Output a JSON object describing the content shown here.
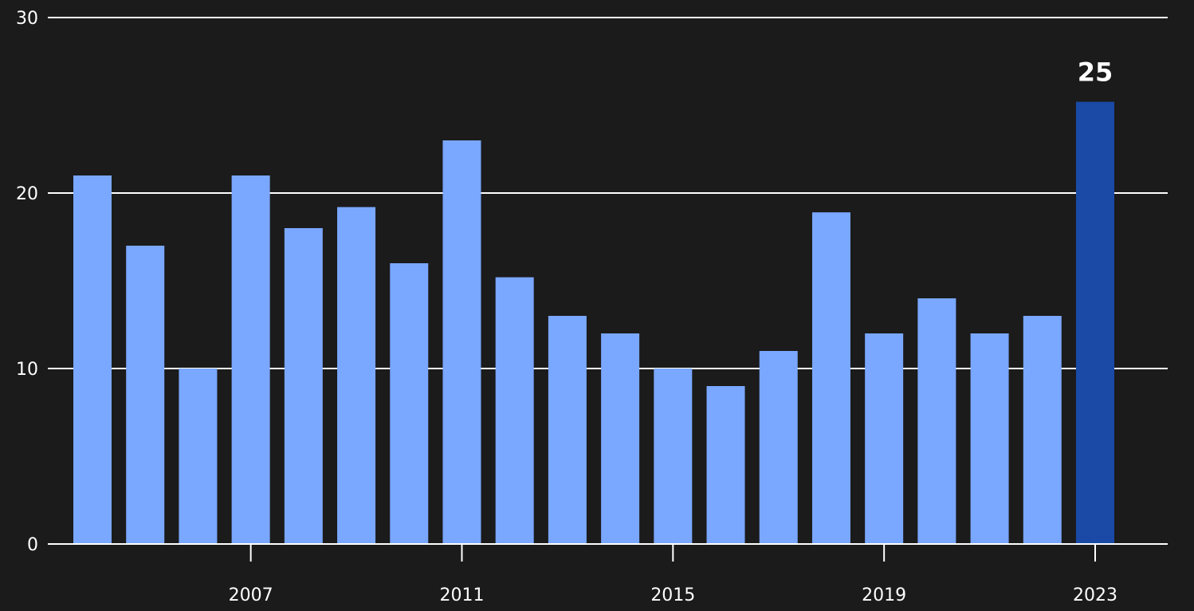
{
  "chart_data": {
    "type": "bar",
    "title": "",
    "xlabel": "",
    "ylabel": "",
    "categories": [
      "2004",
      "2005",
      "2006",
      "2007",
      "2008",
      "2009",
      "2010",
      "2011",
      "2012",
      "2013",
      "2014",
      "2015",
      "2016",
      "2017",
      "2018",
      "2019",
      "2020",
      "2021",
      "2022",
      "2023"
    ],
    "values": [
      21,
      17,
      10,
      21,
      18,
      19.2,
      16,
      23,
      15.2,
      13,
      12,
      10,
      9,
      11,
      18.9,
      12,
      14,
      12,
      13,
      25.2
    ],
    "ylim": [
      0,
      30
    ],
    "y_ticks": [
      {
        "value": 0,
        "label": "0"
      },
      {
        "value": 10,
        "label": "10"
      },
      {
        "value": 20,
        "label": "20"
      },
      {
        "value": 30,
        "label": "30"
      }
    ],
    "x_tick_labels": [
      {
        "category": "2007",
        "label": "2007"
      },
      {
        "category": "2011",
        "label": "2011"
      },
      {
        "category": "2015",
        "label": "2015"
      },
      {
        "category": "2019",
        "label": "2019"
      },
      {
        "category": "2023",
        "label": "2023"
      }
    ],
    "highlight": {
      "category": "2023",
      "label": "25"
    },
    "grid": true,
    "colors": {
      "bar": "#7aa7ff",
      "highlight_bar": "#1a4aa6",
      "background": "#1b1b1b",
      "text": "#ffffff"
    }
  }
}
